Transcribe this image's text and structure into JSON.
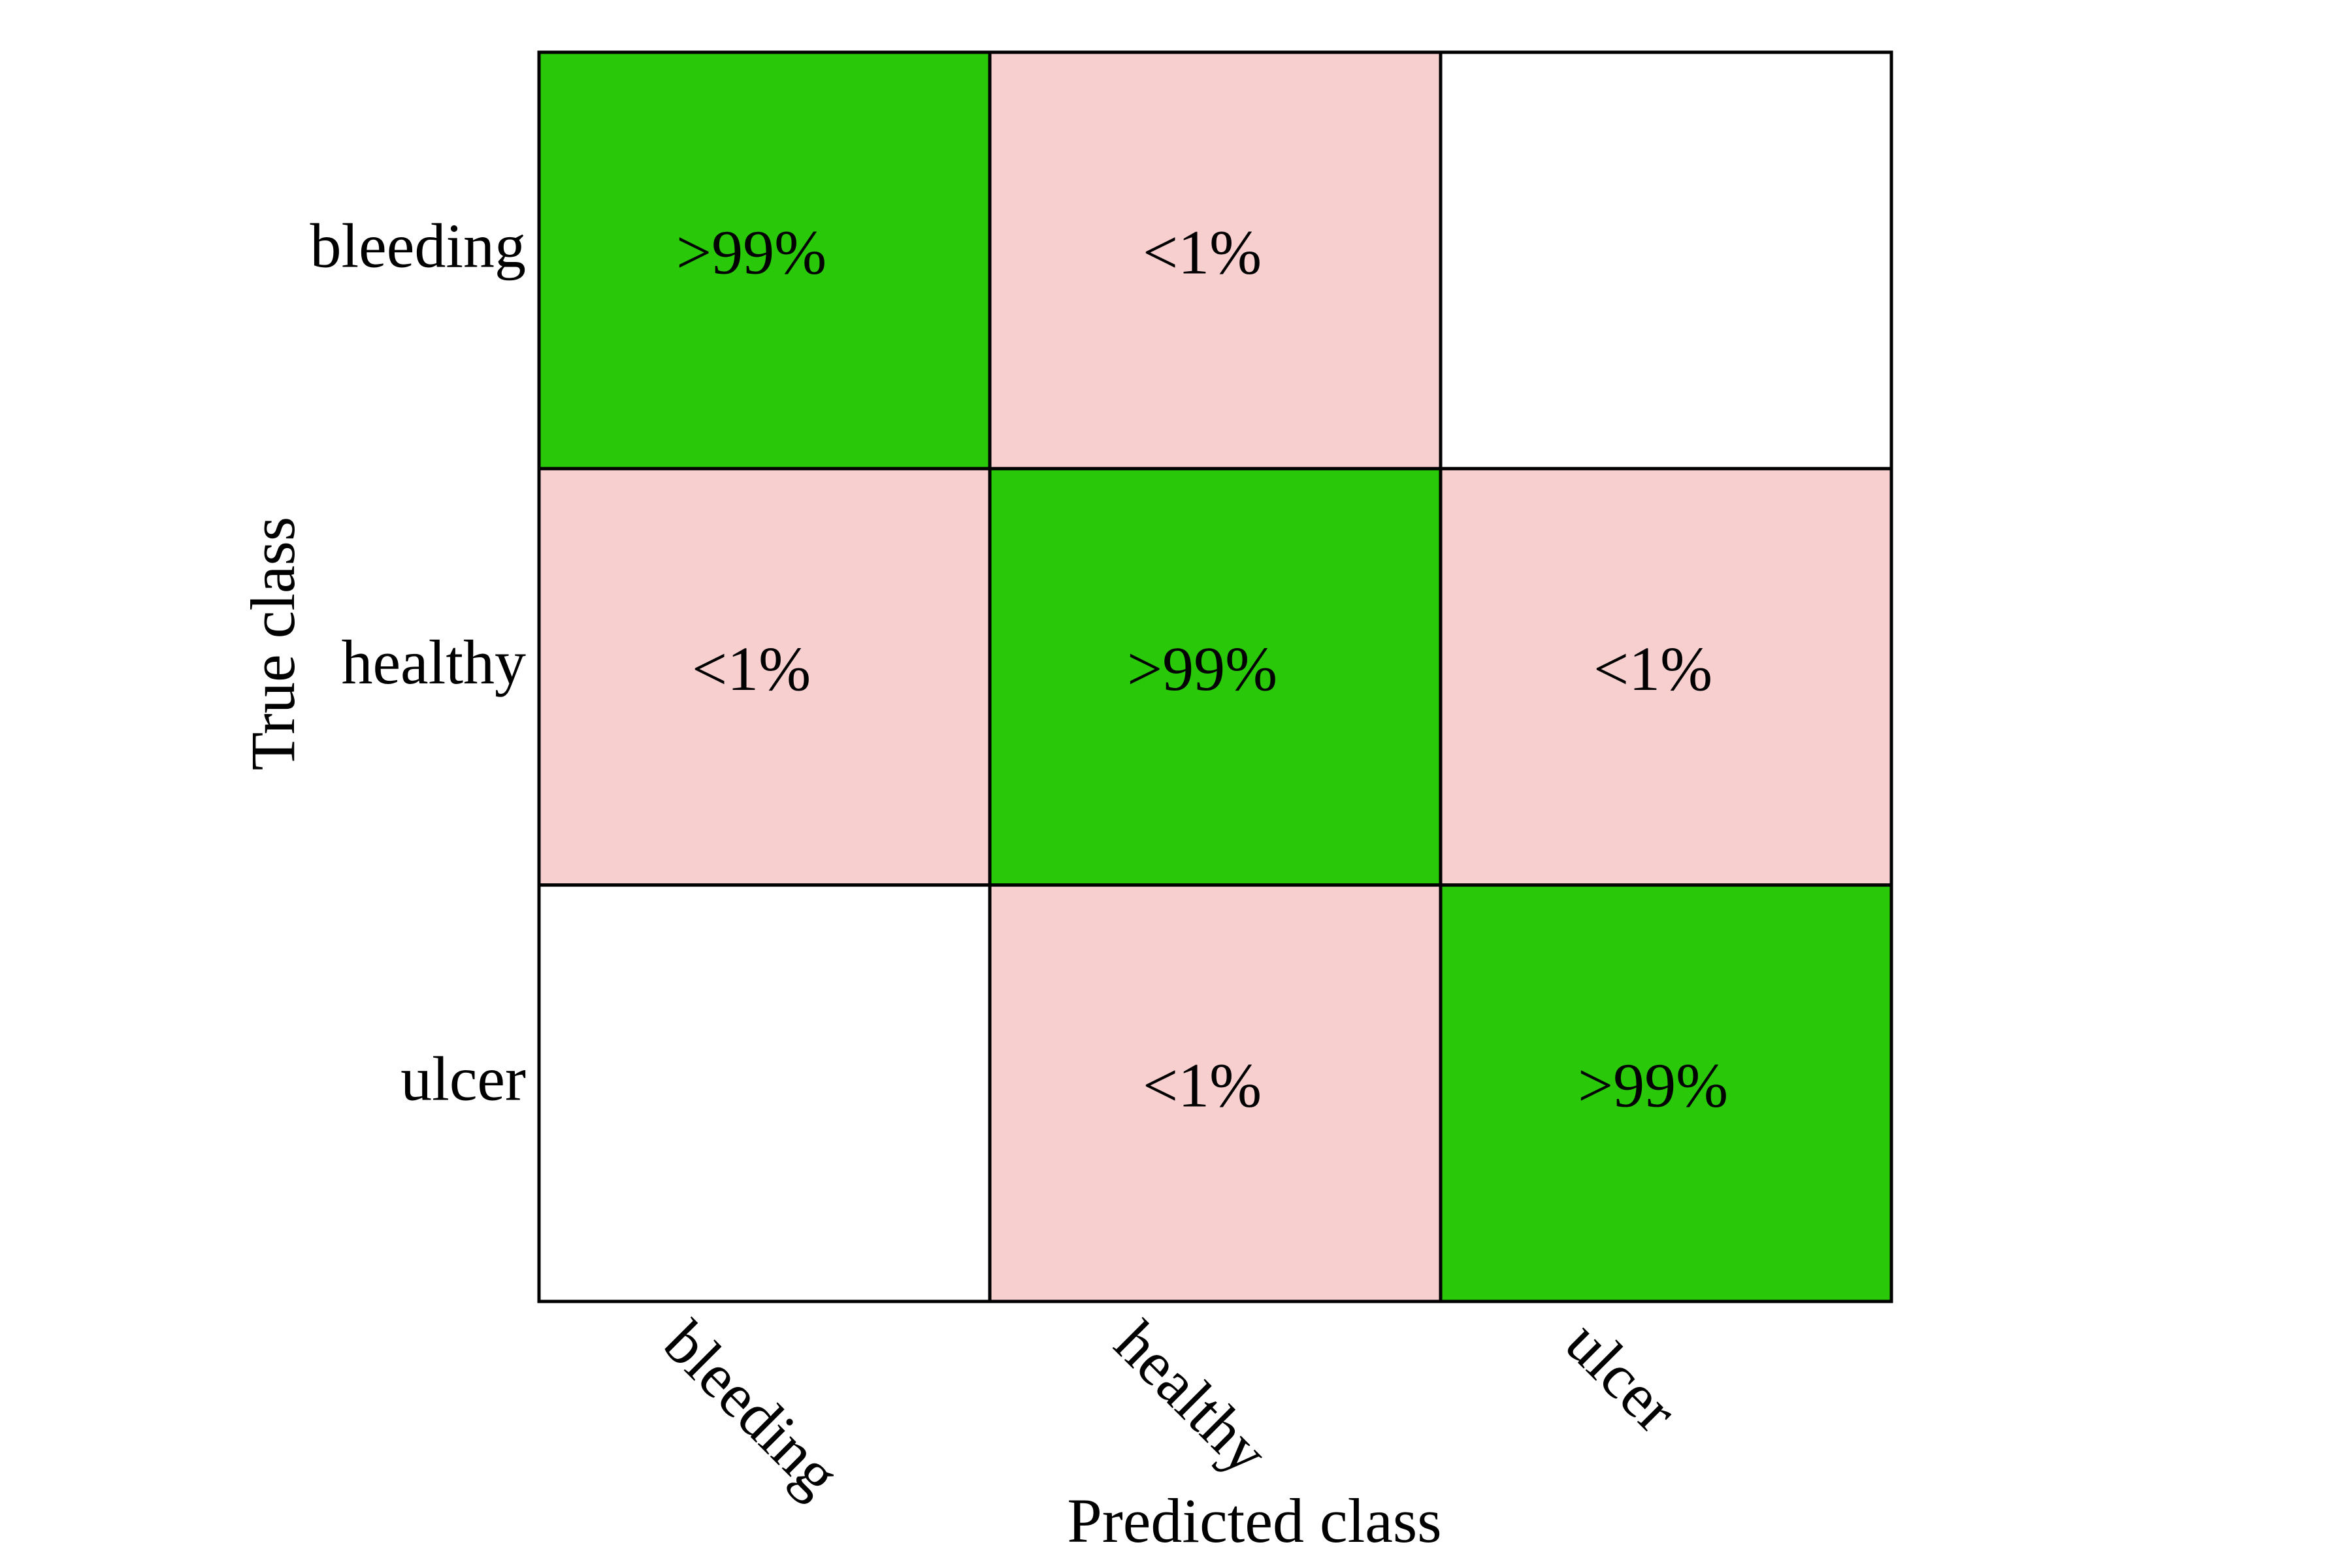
{
  "chart_data": {
    "type": "heatmap",
    "title": "",
    "xlabel": "Predicted class",
    "ylabel": "True class",
    "x_categories": [
      "bleeding",
      "healthy",
      "ulcer"
    ],
    "y_categories": [
      "bleeding",
      "healthy",
      "ulcer"
    ],
    "cells": [
      [
        ">99%",
        "<1%",
        ""
      ],
      [
        "<1%",
        ">99%",
        "<1%"
      ],
      [
        "",
        "<1%",
        ">99%"
      ]
    ],
    "cell_kind": [
      [
        "correct",
        "error",
        "empty"
      ],
      [
        "error",
        "correct",
        "error"
      ],
      [
        "empty",
        "error",
        "correct"
      ]
    ],
    "colors": {
      "correct": "#29c809",
      "error": "#f8cfcf",
      "empty": "#ffffff",
      "border": "#000000"
    }
  }
}
